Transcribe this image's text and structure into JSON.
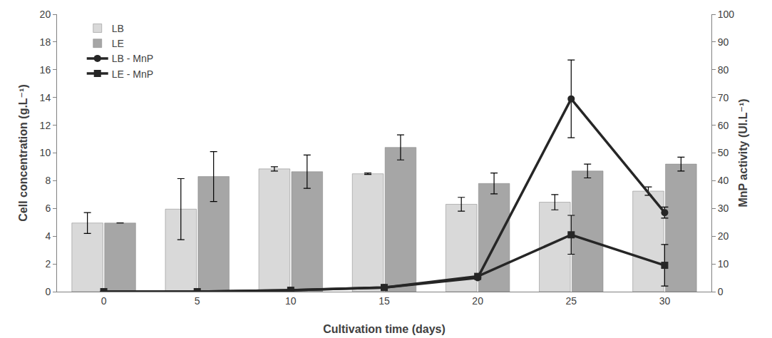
{
  "chart_data": {
    "type": "bar",
    "x_label": "Cultivation time (days)",
    "y_label": "Cell concentration (g.L⁻¹)",
    "y2_label": "MnP activity (UI.L⁻¹)",
    "categories": [
      "0",
      "5",
      "10",
      "15",
      "20",
      "25",
      "30"
    ],
    "ylim": [
      0,
      20
    ],
    "yticks": [
      0,
      2,
      4,
      6,
      8,
      10,
      12,
      14,
      16,
      18,
      20
    ],
    "y2lim": [
      0,
      100
    ],
    "y2ticks": [
      0,
      10,
      20,
      30,
      40,
      50,
      60,
      70,
      80,
      90,
      100
    ],
    "grid": false,
    "legend": "upper left",
    "series": [
      {
        "name": "LB",
        "type": "bar",
        "color": "#d9d9d9",
        "values": [
          4.95,
          5.95,
          8.85,
          8.5,
          6.3,
          6.45,
          7.25
        ],
        "error": [
          0.75,
          2.2,
          0.15,
          0.05,
          0.5,
          0.55,
          0.3
        ]
      },
      {
        "name": "LE",
        "type": "bar",
        "color": "#a6a6a6",
        "values": [
          4.95,
          8.3,
          8.65,
          10.4,
          7.8,
          8.7,
          9.2
        ],
        "error": [
          0,
          1.8,
          1.2,
          0.9,
          0.75,
          0.5,
          0.5
        ]
      },
      {
        "name": "LB - MnP",
        "type": "line",
        "axis": "y2",
        "color": "#262626",
        "marker": "circle",
        "values": [
          0,
          0,
          0.5,
          1.5,
          5,
          69.5,
          28.5
        ],
        "error": [
          0,
          0,
          0,
          0,
          0,
          14,
          2
        ]
      },
      {
        "name": "LE - MnP",
        "type": "line",
        "axis": "y2",
        "color": "#262626",
        "marker": "square",
        "values": [
          0,
          0,
          0.5,
          1.5,
          5.5,
          20.5,
          9.5
        ],
        "error": [
          0,
          0,
          0,
          0,
          0,
          7,
          7.5
        ]
      }
    ]
  }
}
